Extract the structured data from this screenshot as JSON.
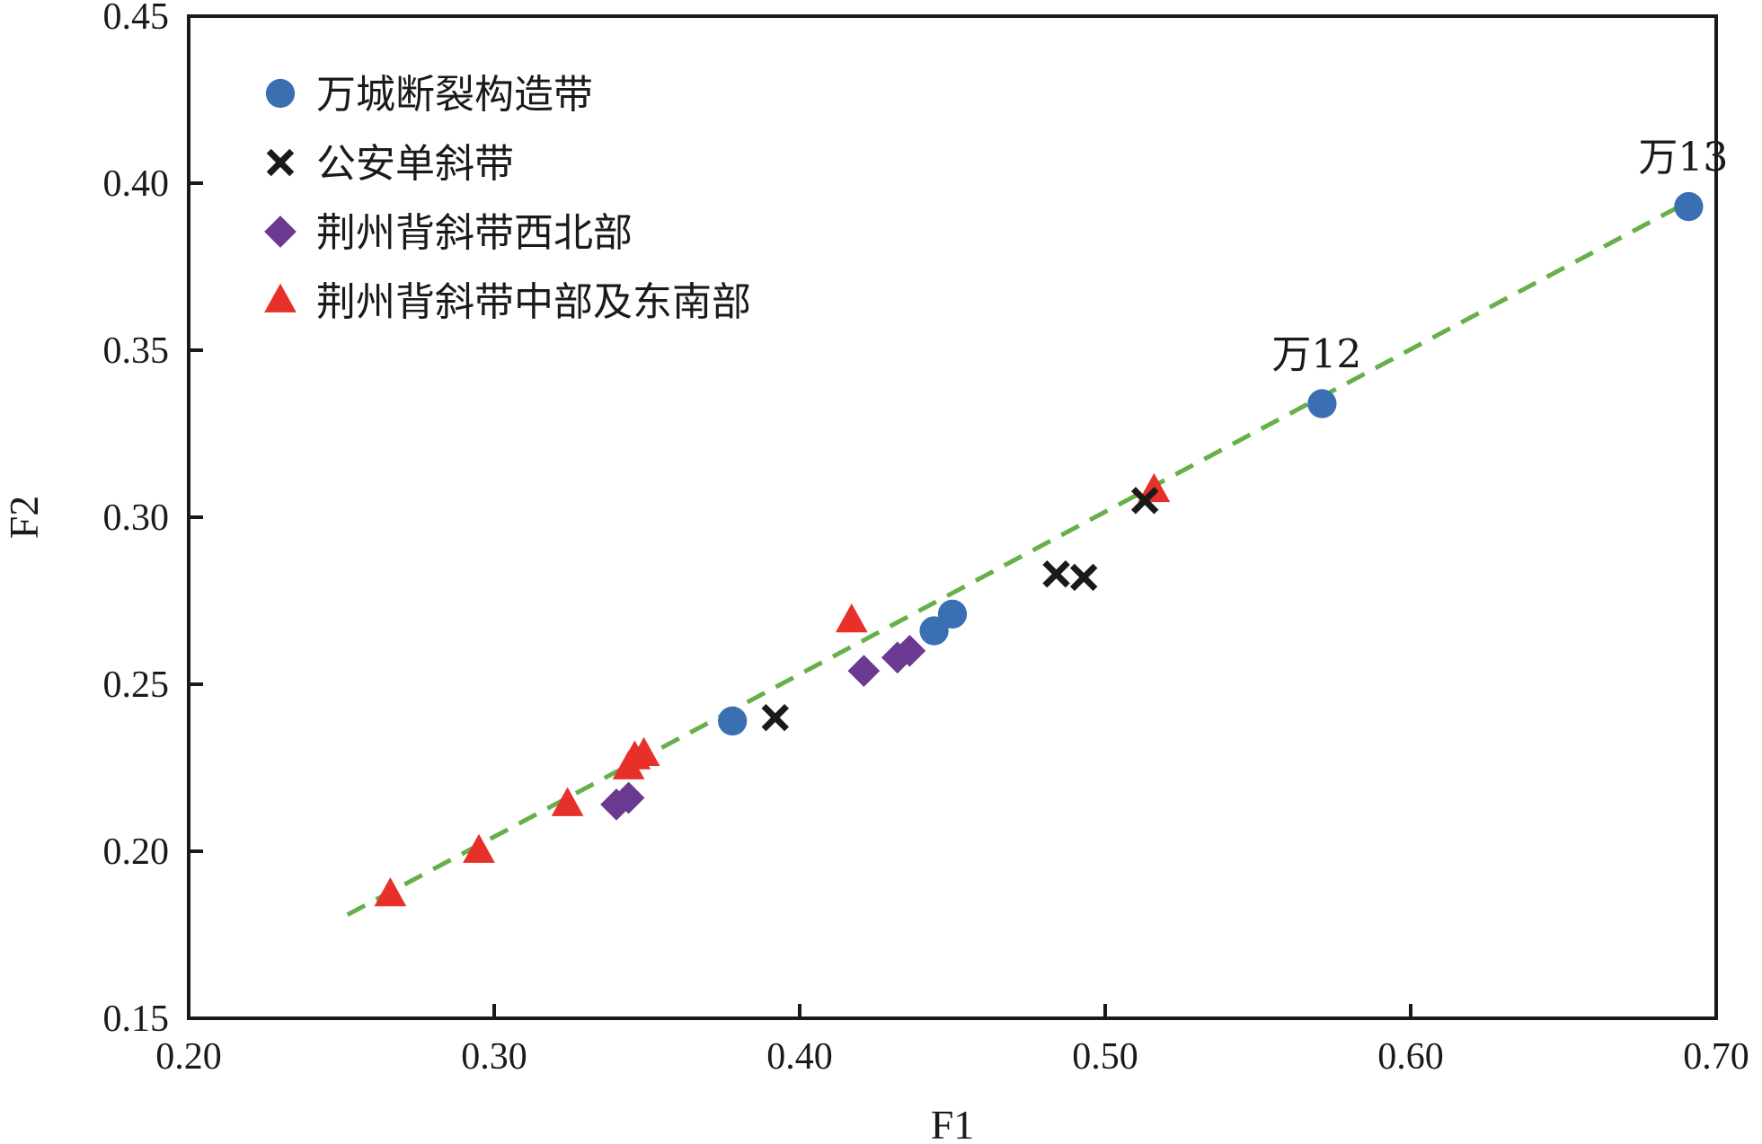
{
  "chart_data": {
    "type": "scatter",
    "xlabel": "F1",
    "ylabel": "F2",
    "xlim": [
      0.2,
      0.7
    ],
    "ylim": [
      0.15,
      0.45
    ],
    "xticks": [
      "0.20",
      "0.30",
      "0.40",
      "0.50",
      "0.60",
      "0.70"
    ],
    "yticks": [
      "0.15",
      "0.20",
      "0.25",
      "0.30",
      "0.35",
      "0.40",
      "0.45"
    ],
    "grid": false,
    "legend_position": "top-left",
    "trendline": {
      "style": "dashed",
      "color": "#66b04a",
      "x": [
        0.252,
        0.692
      ],
      "y": [
        0.181,
        0.395
      ]
    },
    "series": [
      {
        "name": "万城断裂构造带",
        "marker": "circle",
        "color": "#3a6fb2",
        "points": [
          {
            "x": 0.378,
            "y": 0.239
          },
          {
            "x": 0.444,
            "y": 0.266
          },
          {
            "x": 0.45,
            "y": 0.271
          },
          {
            "x": 0.571,
            "y": 0.334
          },
          {
            "x": 0.691,
            "y": 0.393
          }
        ]
      },
      {
        "name": "公安单斜带",
        "marker": "x",
        "color": "#1a1a1a",
        "points": [
          {
            "x": 0.392,
            "y": 0.24
          },
          {
            "x": 0.484,
            "y": 0.283
          },
          {
            "x": 0.493,
            "y": 0.282
          },
          {
            "x": 0.513,
            "y": 0.305
          }
        ]
      },
      {
        "name": "荆州背斜带西北部",
        "marker": "diamond",
        "color": "#6a3a92",
        "points": [
          {
            "x": 0.34,
            "y": 0.214
          },
          {
            "x": 0.344,
            "y": 0.216
          },
          {
            "x": 0.421,
            "y": 0.254
          },
          {
            "x": 0.432,
            "y": 0.258
          },
          {
            "x": 0.436,
            "y": 0.26
          }
        ]
      },
      {
        "name": "荆州背斜带中部及东南部",
        "marker": "triangle",
        "color": "#e8302a",
        "points": [
          {
            "x": 0.266,
            "y": 0.187
          },
          {
            "x": 0.295,
            "y": 0.2
          },
          {
            "x": 0.324,
            "y": 0.214
          },
          {
            "x": 0.344,
            "y": 0.225
          },
          {
            "x": 0.346,
            "y": 0.228
          },
          {
            "x": 0.349,
            "y": 0.229
          },
          {
            "x": 0.417,
            "y": 0.269
          },
          {
            "x": 0.516,
            "y": 0.308
          }
        ]
      }
    ],
    "annotations": [
      {
        "text": "万12",
        "x": 0.571,
        "y": 0.334
      },
      {
        "text": "万13",
        "x": 0.691,
        "y": 0.393
      }
    ]
  }
}
